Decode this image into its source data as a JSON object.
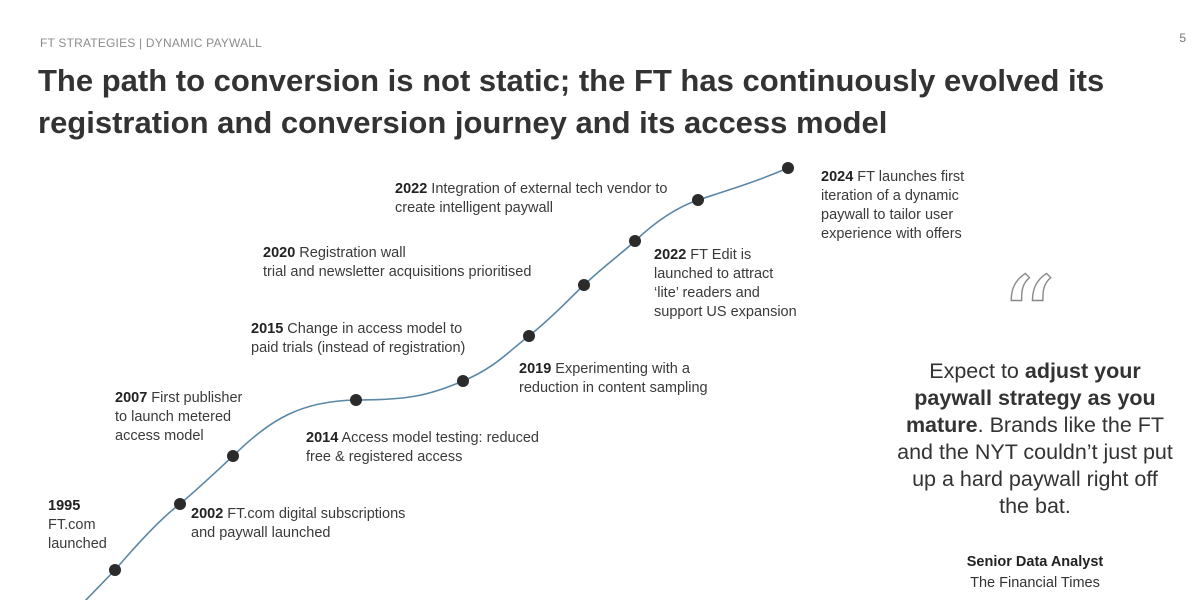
{
  "header": {
    "kicker": "FT STRATEGIES | DYNAMIC PAYWALL",
    "page_number": "5",
    "title": "The path to conversion is not static; the FT has continuously evolved its registration and conversion journey and its access model"
  },
  "timeline": {
    "line_color": "#5b86a6",
    "dot_color": "#2b2b2b",
    "events": [
      {
        "year": "1995",
        "lines": [
          "FT.com",
          "launched"
        ]
      },
      {
        "year": "2002",
        "lines": [
          "FT.com digital subscriptions",
          "and paywall launched"
        ]
      },
      {
        "year": "2007",
        "lines": [
          "First publisher",
          "to launch metered",
          "access model"
        ]
      },
      {
        "year": "2014",
        "lines": [
          "Access model testing: reduced",
          "free & registered access"
        ]
      },
      {
        "year": "2015",
        "lines": [
          "Change in access model to",
          "paid trials (instead of registration)"
        ]
      },
      {
        "year": "2019",
        "lines": [
          "Experimenting with a",
          "reduction in content sampling"
        ]
      },
      {
        "year": "2020",
        "lines": [
          "Registration wall",
          "trial and newsletter acquisitions prioritised"
        ]
      },
      {
        "year": "2022",
        "lines": [
          "FT Edit is",
          "launched to attract",
          "‘lite’ readers and",
          "support US expansion"
        ]
      },
      {
        "year": "2022",
        "lines": [
          "Integration of external tech vendor to",
          "create intelligent paywall"
        ]
      },
      {
        "year": "2024",
        "lines": [
          "FT launches first",
          "iteration of a dynamic",
          "paywall to tailor user",
          "experience with offers"
        ]
      }
    ]
  },
  "quote": {
    "part1": "Expect to ",
    "bold": "adjust your paywall strategy as you mature",
    "part2": ". Brands like the FT and the NYT couldn’t just put up a hard paywall right off the bat.",
    "author": "Senior Data Analyst",
    "organization": "The Financial Times"
  }
}
